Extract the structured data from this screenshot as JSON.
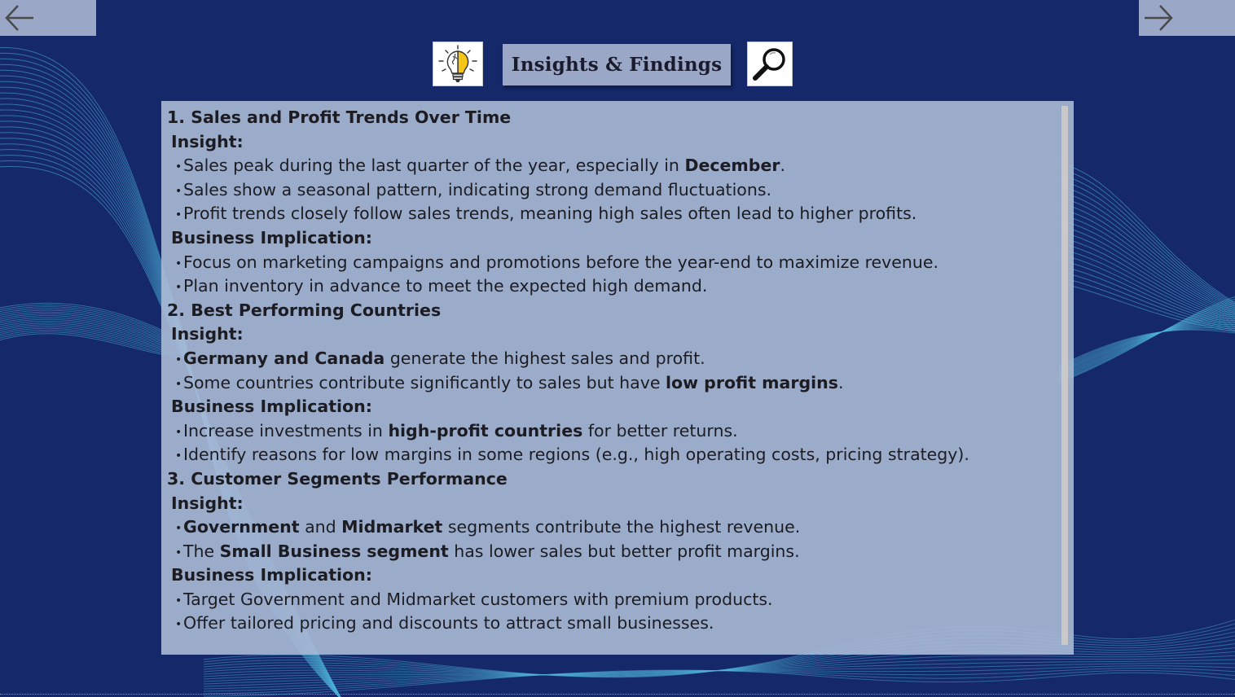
{
  "page": {
    "title": "Insights & Findings"
  },
  "nav": {
    "back_icon": "arrow-left-icon",
    "forward_icon": "arrow-right-icon"
  },
  "icons": {
    "idea": "brain-lightbulb-icon",
    "search": "magnifier-icon"
  },
  "colors": {
    "background": "#14286a",
    "panel": "#aabad6",
    "tile": "#9aa7c6",
    "wave": "#4fb3d9",
    "bulb": "#f5c518"
  },
  "sections": [
    {
      "heading": "1. Sales and Profit Trends Over Time",
      "insight_label": "Insight:",
      "insights": [
        {
          "pre": "Sales peak during the last quarter of the year, especially in ",
          "bold": "December",
          "post": ".",
          "bold2": "",
          "post2": ""
        },
        {
          "pre": "Sales show a seasonal pattern, indicating strong demand fluctuations.",
          "bold": "",
          "post": "",
          "bold2": "",
          "post2": ""
        },
        {
          "pre": "Profit trends closely follow sales trends, meaning high sales often lead to higher profits.",
          "bold": "",
          "post": "",
          "bold2": "",
          "post2": ""
        }
      ],
      "implication_label": "Business Implication:",
      "implications": [
        {
          "pre": "Focus on marketing campaigns and promotions before the year-end to maximize revenue.",
          "bold": "",
          "post": "",
          "bold2": "",
          "post2": ""
        },
        {
          "pre": "Plan inventory in advance to meet the expected high demand.",
          "bold": "",
          "post": "",
          "bold2": "",
          "post2": ""
        }
      ]
    },
    {
      "heading": "2. Best Performing Countries",
      "insight_label": "Insight:",
      "insights": [
        {
          "pre": "",
          "bold": "Germany and Canada",
          "post": " generate the highest sales and profit.",
          "bold2": "",
          "post2": ""
        },
        {
          "pre": "Some countries contribute significantly to sales but have ",
          "bold": "low profit margins",
          "post": ".",
          "bold2": "",
          "post2": ""
        }
      ],
      "implication_label": "Business Implication:",
      "implications": [
        {
          "pre": "Increase investments in ",
          "bold": "high-profit countries",
          "post": " for better returns.",
          "bold2": "",
          "post2": ""
        },
        {
          "pre": "Identify reasons for low margins in some regions (e.g., high operating costs, pricing strategy).",
          "bold": "",
          "post": "",
          "bold2": "",
          "post2": ""
        }
      ]
    },
    {
      "heading": "3. Customer Segments Performance",
      "insight_label": "Insight:",
      "insights": [
        {
          "pre": "",
          "bold": "Government",
          "post": " and ",
          "bold2": "Midmarket",
          "post2": " segments contribute the highest revenue."
        },
        {
          "pre": "The ",
          "bold": "Small Business segment",
          "post": " has lower sales but better profit margins.",
          "bold2": "",
          "post2": ""
        }
      ],
      "implication_label": "Business Implication:",
      "implications": [
        {
          "pre": "Target Government and Midmarket customers with premium products.",
          "bold": "",
          "post": "",
          "bold2": "",
          "post2": ""
        },
        {
          "pre": "Offer tailored pricing and discounts to attract small businesses.",
          "bold": "",
          "post": "",
          "bold2": "",
          "post2": ""
        }
      ]
    }
  ]
}
